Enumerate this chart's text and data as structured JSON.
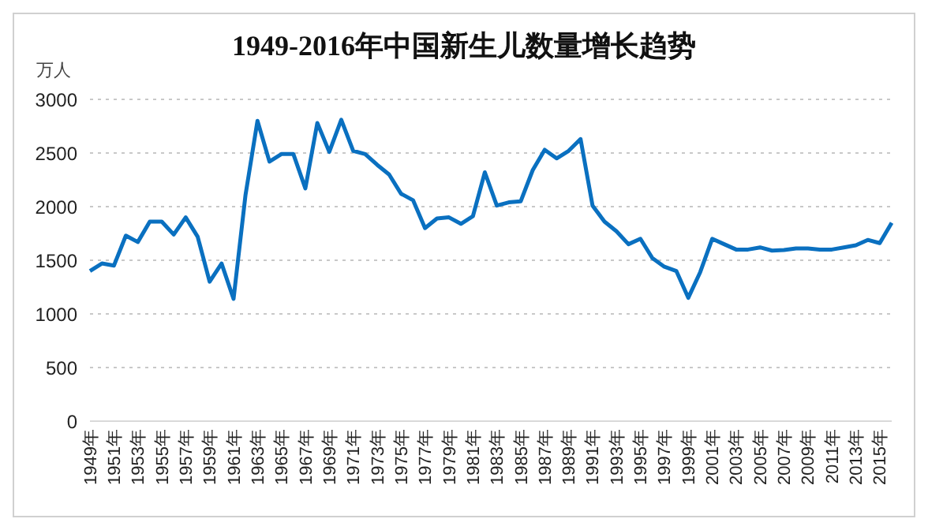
{
  "chart_data": {
    "type": "line",
    "title": "1949-2016年中国新生儿数量增长趋势",
    "ylabel": "万人",
    "categories": [
      "1949年",
      null,
      "1951年",
      null,
      "1953年",
      null,
      "1955年",
      null,
      "1957年",
      null,
      "1959年",
      null,
      "1961年",
      null,
      "1963年",
      null,
      "1965年",
      null,
      "1967年",
      null,
      "1969年",
      null,
      "1971年",
      null,
      "1973年",
      null,
      "1975年",
      null,
      "1977年",
      null,
      "1979年",
      null,
      "1981年",
      null,
      "1983年",
      null,
      "1985年",
      null,
      "1987年",
      null,
      "1989年",
      null,
      "1991年",
      null,
      "1993年",
      null,
      "1995年",
      null,
      "1997年",
      null,
      "1999年",
      null,
      "2001年",
      null,
      "2003年",
      null,
      "2005年",
      null,
      "2007年",
      null,
      "2009年",
      null,
      "2011年",
      null,
      "2013年",
      null,
      "2015年",
      null
    ],
    "series": [
      {
        "color": "#0a70c0",
        "values": [
          1400,
          1470,
          1450,
          1730,
          1670,
          1860,
          1860,
          1740,
          1900,
          1720,
          1300,
          1470,
          1140,
          2110,
          2800,
          2420,
          2490,
          2490,
          2170,
          2780,
          2510,
          2810,
          2520,
          2490,
          2390,
          2300,
          2120,
          2060,
          1800,
          1890,
          1900,
          1840,
          1910,
          2320,
          2010,
          2040,
          2050,
          2340,
          2530,
          2450,
          2520,
          2630,
          2010,
          1860,
          1770,
          1650,
          1700,
          1520,
          1440,
          1400,
          1150,
          1390,
          1700,
          1650,
          1600,
          1600,
          1620,
          1590,
          1595,
          1610,
          1610,
          1600,
          1600,
          1620,
          1640,
          1690,
          1660,
          1850
        ]
      }
    ],
    "ylim": [
      0,
      3000
    ],
    "yticks": [
      0,
      500,
      1000,
      1500,
      2000,
      2500,
      3000
    ],
    "grid": "y",
    "marker": "none",
    "line_style": "solid"
  }
}
